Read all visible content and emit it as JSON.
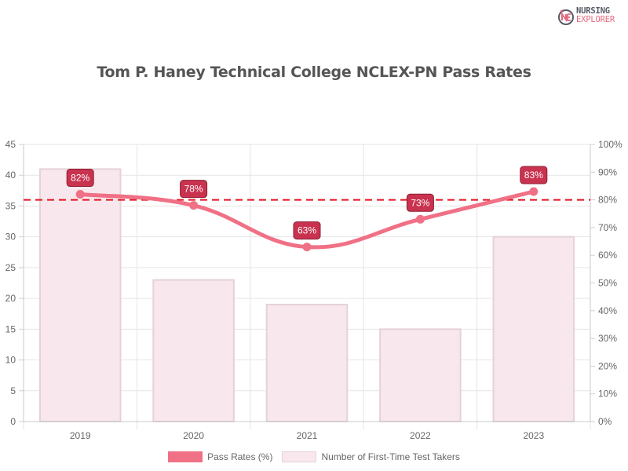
{
  "brand": {
    "line1": "NURSING",
    "line2": "EXPLORER",
    "icon": "nursing-explorer-logo-icon"
  },
  "title": "Tom P. Haney Technical College NCLEX-PN Pass Rates",
  "legend": {
    "pass_rates": "Pass Rates (%)",
    "test_takers": "Number of First-Time Test Takers"
  },
  "axes": {
    "left_ticks": [
      "0",
      "5",
      "10",
      "15",
      "20",
      "25",
      "30",
      "35",
      "40",
      "45"
    ],
    "right_ticks": [
      "0%",
      "10%",
      "20%",
      "30%",
      "40%",
      "50%",
      "60%",
      "70%",
      "80%",
      "90%",
      "100%"
    ],
    "x_ticks": [
      "2019",
      "2020",
      "2021",
      "2022",
      "2023"
    ]
  },
  "colors": {
    "line": "#f07085",
    "bar_fill": "#f8e7ec",
    "bar_border": "#e5d2d8",
    "label_bg": "#c9334f",
    "reference_line": "#e3121f"
  },
  "chart_data": {
    "type": "bar",
    "title": "Tom P. Haney Technical College NCLEX-PN Pass Rates",
    "categories": [
      "2019",
      "2020",
      "2021",
      "2022",
      "2023"
    ],
    "series": [
      {
        "name": "Number of First-Time Test Takers",
        "type": "bar",
        "axis": "left",
        "values": [
          41,
          23,
          19,
          15,
          30
        ]
      },
      {
        "name": "Pass Rates (%)",
        "type": "line",
        "axis": "right",
        "values": [
          82,
          78,
          63,
          73,
          83
        ],
        "labels": [
          "82%",
          "78%",
          "63%",
          "73%",
          "83%"
        ]
      }
    ],
    "reference_line": {
      "axis": "right",
      "value": 80,
      "style": "dashed",
      "color": "#e3121f"
    },
    "left_axis": {
      "ylim": [
        0,
        45
      ],
      "step": 5
    },
    "right_axis": {
      "ylim": [
        0,
        100
      ],
      "step": 10,
      "format": "percent"
    },
    "xlabel": "",
    "ylabel": "",
    "grid": true,
    "legend_position": "bottom"
  }
}
